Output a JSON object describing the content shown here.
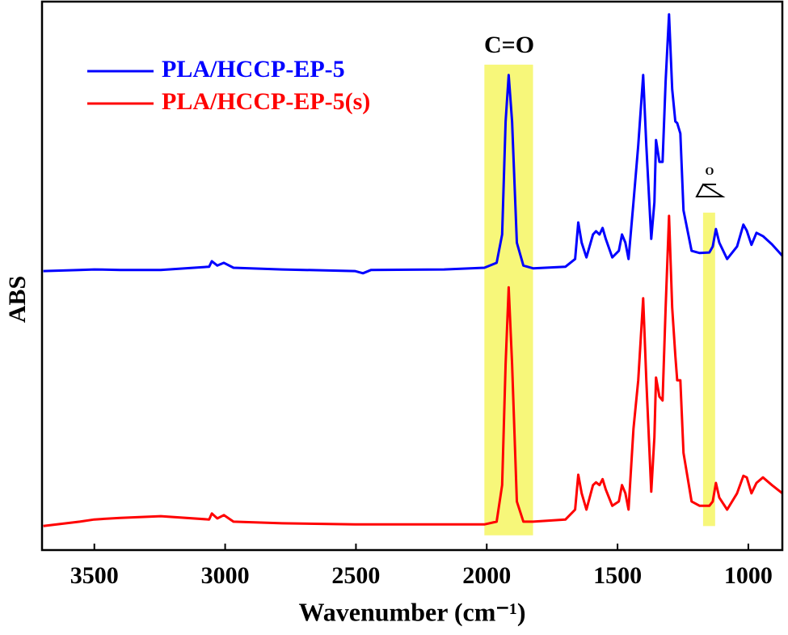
{
  "chart_data": {
    "type": "line",
    "xlabel": "Wavenumber (cm⁻¹)",
    "ylabel": "ABS",
    "xlim": [
      3700,
      870
    ],
    "ylim": [
      0,
      100
    ],
    "xticks": [
      3500,
      3000,
      2500,
      2000,
      1500,
      1000
    ],
    "legend": "upper left",
    "annotations": [
      "C=O",
      "O"
    ],
    "highlight_color": "#f7f77a",
    "highlights": [
      {
        "xrange": [
          2009,
          1823
        ],
        "yrange": [
          2.7,
          88.9
        ]
      },
      {
        "xrange": [
          1173,
          1127
        ],
        "yrange": [
          4.4,
          61.8
        ]
      }
    ],
    "x": [
      3695,
      3556,
      3500,
      3401,
      3246,
      3061,
      3051,
      3030,
      3005,
      2968,
      2782,
      2504,
      2473,
      2442,
      2163,
      2009,
      1962,
      1941,
      1928,
      1916,
      1903,
      1885,
      1860,
      1823,
      1699,
      1662,
      1650,
      1637,
      1619,
      1594,
      1582,
      1569,
      1557,
      1545,
      1520,
      1495,
      1483,
      1470,
      1458,
      1439,
      1421,
      1402,
      1390,
      1371,
      1359,
      1353,
      1340,
      1328,
      1316,
      1303,
      1291,
      1279,
      1272,
      1260,
      1248,
      1217,
      1186,
      1149,
      1136,
      1124,
      1111,
      1081,
      1043,
      1019,
      1006,
      988,
      969,
      944,
      910,
      870
    ],
    "series": [
      {
        "name": "PLA/HCCP-EP-5",
        "color": "#0000ff",
        "values": [
          51.1,
          51.3,
          51.4,
          51.3,
          51.3,
          51.9,
          52.9,
          52.1,
          52.6,
          51.7,
          51.4,
          51.1,
          50.7,
          51.3,
          51.4,
          51.7,
          52.6,
          57.8,
          78.5,
          87.0,
          78.5,
          56.3,
          52.1,
          51.6,
          51.9,
          53.3,
          60.0,
          56.3,
          53.6,
          57.8,
          58.4,
          57.8,
          59.0,
          57.0,
          53.6,
          54.8,
          57.8,
          56.3,
          53.3,
          63.7,
          74.1,
          87.0,
          74.1,
          57.0,
          63.7,
          75.1,
          71.1,
          71.1,
          85.9,
          98.1,
          84.4,
          78.5,
          78.2,
          76.3,
          62.2,
          54.8,
          54.4,
          54.5,
          55.6,
          58.8,
          56.3,
          53.3,
          55.6,
          59.6,
          58.5,
          55.9,
          58.1,
          57.5,
          56.0,
          53.9
        ]
      },
      {
        "name": "PLA/HCCP-EP-5(s)",
        "color": "#ff0000",
        "values": [
          4.4,
          5.2,
          5.6,
          5.9,
          6.2,
          5.6,
          6.7,
          5.8,
          6.4,
          5.2,
          4.9,
          4.7,
          4.7,
          4.7,
          4.7,
          4.7,
          5.2,
          11.9,
          34.1,
          48.1,
          34.1,
          8.9,
          5.2,
          5.2,
          5.6,
          7.4,
          13.8,
          10.4,
          7.4,
          11.9,
          12.4,
          11.9,
          13.0,
          11.1,
          8.1,
          8.9,
          11.9,
          10.4,
          7.4,
          22.2,
          31.1,
          46.1,
          31.1,
          10.7,
          20.7,
          31.6,
          28.1,
          27.4,
          44.4,
          61.2,
          44.4,
          35.6,
          31.1,
          31.1,
          17.8,
          8.9,
          8.1,
          8.1,
          8.9,
          12.3,
          9.6,
          7.4,
          10.4,
          13.6,
          13.3,
          10.4,
          12.3,
          13.3,
          11.9,
          10.4
        ]
      }
    ]
  }
}
